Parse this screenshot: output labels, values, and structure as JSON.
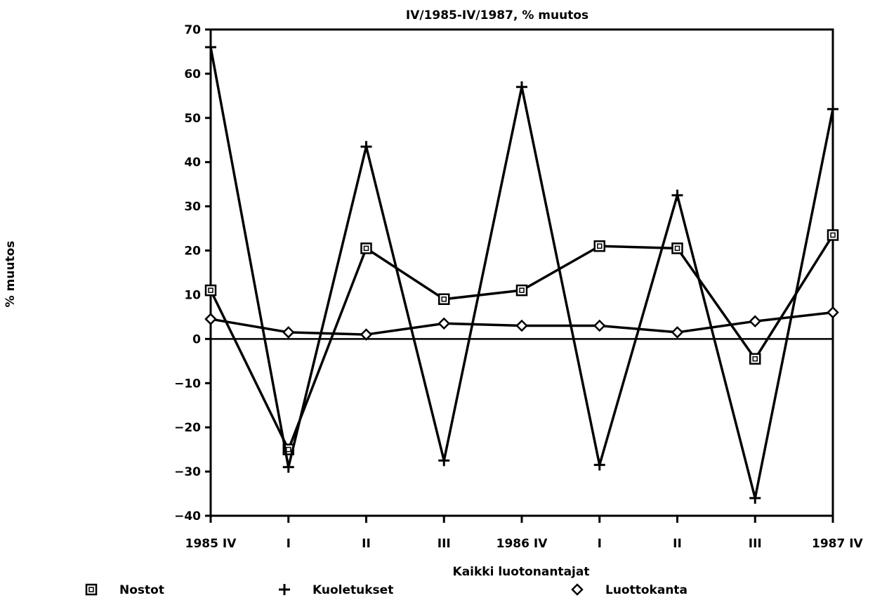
{
  "chart_data": {
    "type": "line",
    "title": "IV/1985-IV/1987, % muutos",
    "xlabel": "Kaikki luotonantajat",
    "ylabel": "% muutos",
    "categories": [
      "1985 IV",
      "I",
      "II",
      "III",
      "1986 IV",
      "I",
      "II",
      "III",
      "1987 IV"
    ],
    "ylim": [
      -40,
      70
    ],
    "yticks": [
      70,
      60,
      50,
      40,
      30,
      20,
      10,
      0,
      -10,
      -20,
      -30,
      -40
    ],
    "grid": false,
    "legend_position": "bottom",
    "series": [
      {
        "name": "Nostot",
        "marker": "square",
        "values": [
          11,
          -25,
          20.5,
          9,
          11,
          21,
          20.5,
          -4.5,
          23.5
        ]
      },
      {
        "name": "Kuoletukset",
        "marker": "plus",
        "values": [
          66,
          -29,
          43.5,
          -27.5,
          57,
          -28.5,
          32.5,
          -36,
          52
        ]
      },
      {
        "name": "Luottokanta",
        "marker": "diamond",
        "values": [
          4.5,
          1.5,
          1,
          3.5,
          3,
          3,
          1.5,
          4,
          6
        ]
      }
    ]
  }
}
